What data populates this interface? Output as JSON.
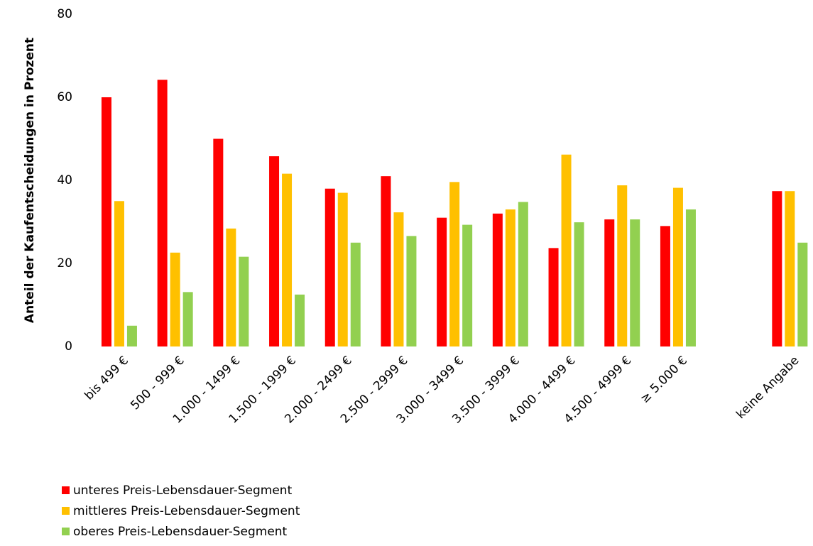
{
  "chart_data": {
    "type": "bar",
    "y_label": "Anteil der Kaufentscheidungen in Prozent",
    "categories": [
      "bis 499 €",
      "500 - 999 €",
      "1.000 - 1499 €",
      "1.500 - 1999 €",
      "2.000 - 2499 €",
      "2.500 - 2999 €",
      "3.000 - 3499 €",
      "3.500 - 3999 €",
      "4.000 - 4499 €",
      "4.500 - 4999 €",
      "≥ 5.000 €",
      null,
      "keine Angabe"
    ],
    "series": [
      {
        "name": "unteres Preis-Lebensdauer-Segment",
        "color": "#ff0000",
        "values": [
          60,
          64.2,
          50,
          45.8,
          38,
          41,
          31,
          32,
          23.7,
          30.6,
          29,
          null,
          37.4
        ]
      },
      {
        "name": "mittleres Preis-Lebensdauer-Segment",
        "color": "#ffc000",
        "values": [
          35,
          22.6,
          28.4,
          41.6,
          37,
          32.3,
          39.6,
          33,
          46.2,
          38.8,
          38.2,
          null,
          37.4
        ]
      },
      {
        "name": "oberes Preis-Lebensdauer-Segment",
        "color": "#92d050",
        "values": [
          5,
          13.1,
          21.6,
          12.5,
          25,
          26.6,
          29.3,
          34.8,
          29.9,
          30.6,
          33,
          null,
          25
        ]
      }
    ],
    "ylim": [
      0,
      80
    ],
    "yticks": [
      0,
      20,
      40,
      60,
      80
    ],
    "grid": false,
    "legend": "bottom-left"
  }
}
